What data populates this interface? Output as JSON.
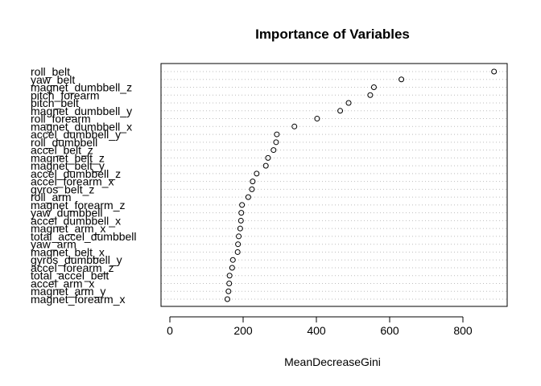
{
  "chart_data": {
    "type": "scatter",
    "title": "Importance of Variables",
    "xlabel": "MeanDecreaseGini",
    "ylabel": "",
    "xlim": [
      -20,
      920
    ],
    "xticks": [
      0,
      200,
      400,
      600,
      800
    ],
    "grid": "dotted horizontal",
    "variables": [
      "roll_belt",
      "yaw_belt",
      "magnet_dumbbell_z",
      "pitch_forearm",
      "pitch_belt",
      "magnet_dumbbell_y",
      "roll_forearm",
      "magnet_dumbbell_x",
      "accel_dumbbell_y",
      "roll_dumbbell",
      "accel_belt_z",
      "magnet_belt_z",
      "magnet_belt_y",
      "accel_dumbbell_z",
      "accel_forearm_x",
      "gyros_belt_z",
      "roll_arm",
      "magnet_forearm_z",
      "yaw_dumbbell",
      "accel_dumbbell_x",
      "magnet_arm_x",
      "total_accel_dumbbell",
      "yaw_arm",
      "magnet_belt_x",
      "gyros_dumbbell_y",
      "accel_forearm_z",
      "total_accel_belt",
      "accel_arm_x",
      "magnet_arm_y",
      "magnet_forearm_x"
    ],
    "values": [
      885,
      632,
      557,
      547,
      488,
      465,
      402,
      340,
      292,
      290,
      283,
      268,
      262,
      237,
      226,
      224,
      214,
      197,
      195,
      194,
      192,
      188,
      186,
      185,
      172,
      170,
      163,
      162,
      160,
      157
    ]
  }
}
